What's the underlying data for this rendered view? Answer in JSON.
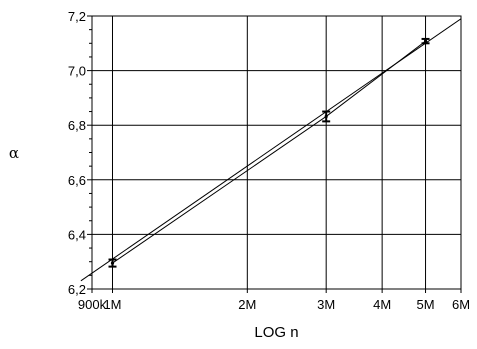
{
  "chart_data": {
    "type": "scatter",
    "title": "",
    "xlabel": "LOG n",
    "ylabel": "α",
    "x_scale": "log",
    "xlim": [
      900000,
      6000000
    ],
    "ylim": [
      6.2,
      7.2
    ],
    "grid": true,
    "x_ticks": [
      {
        "value": 900000,
        "label": "900k"
      },
      {
        "value": 1000000,
        "label": "1M"
      },
      {
        "value": 2000000,
        "label": "2M"
      },
      {
        "value": 3000000,
        "label": "3M"
      },
      {
        "value": 4000000,
        "label": "4M"
      },
      {
        "value": 5000000,
        "label": "5M"
      },
      {
        "value": 6000000,
        "label": "6M"
      }
    ],
    "y_ticks": [
      {
        "value": 6.2,
        "label": "6,2"
      },
      {
        "value": 6.4,
        "label": "6,4"
      },
      {
        "value": 6.6,
        "label": "6,6"
      },
      {
        "value": 6.8,
        "label": "6,8"
      },
      {
        "value": 7.0,
        "label": "7,0"
      },
      {
        "value": 7.2,
        "label": "7,2"
      }
    ],
    "series": [
      {
        "points": [
          {
            "x": 1000000,
            "y": 6.295,
            "err": 0.013
          },
          {
            "x": 3000000,
            "y": 6.832,
            "err": 0.018
          },
          {
            "x": 5000000,
            "y": 7.108,
            "err": 0.008
          }
        ]
      }
    ],
    "lines": [
      {
        "points": [
          [
            850000,
            6.23
          ],
          [
            6000000,
            7.19
          ]
        ]
      },
      {
        "points": [
          [
            1000000,
            6.295
          ],
          [
            3000000,
            6.832
          ],
          [
            5000000,
            7.108
          ]
        ]
      }
    ]
  }
}
